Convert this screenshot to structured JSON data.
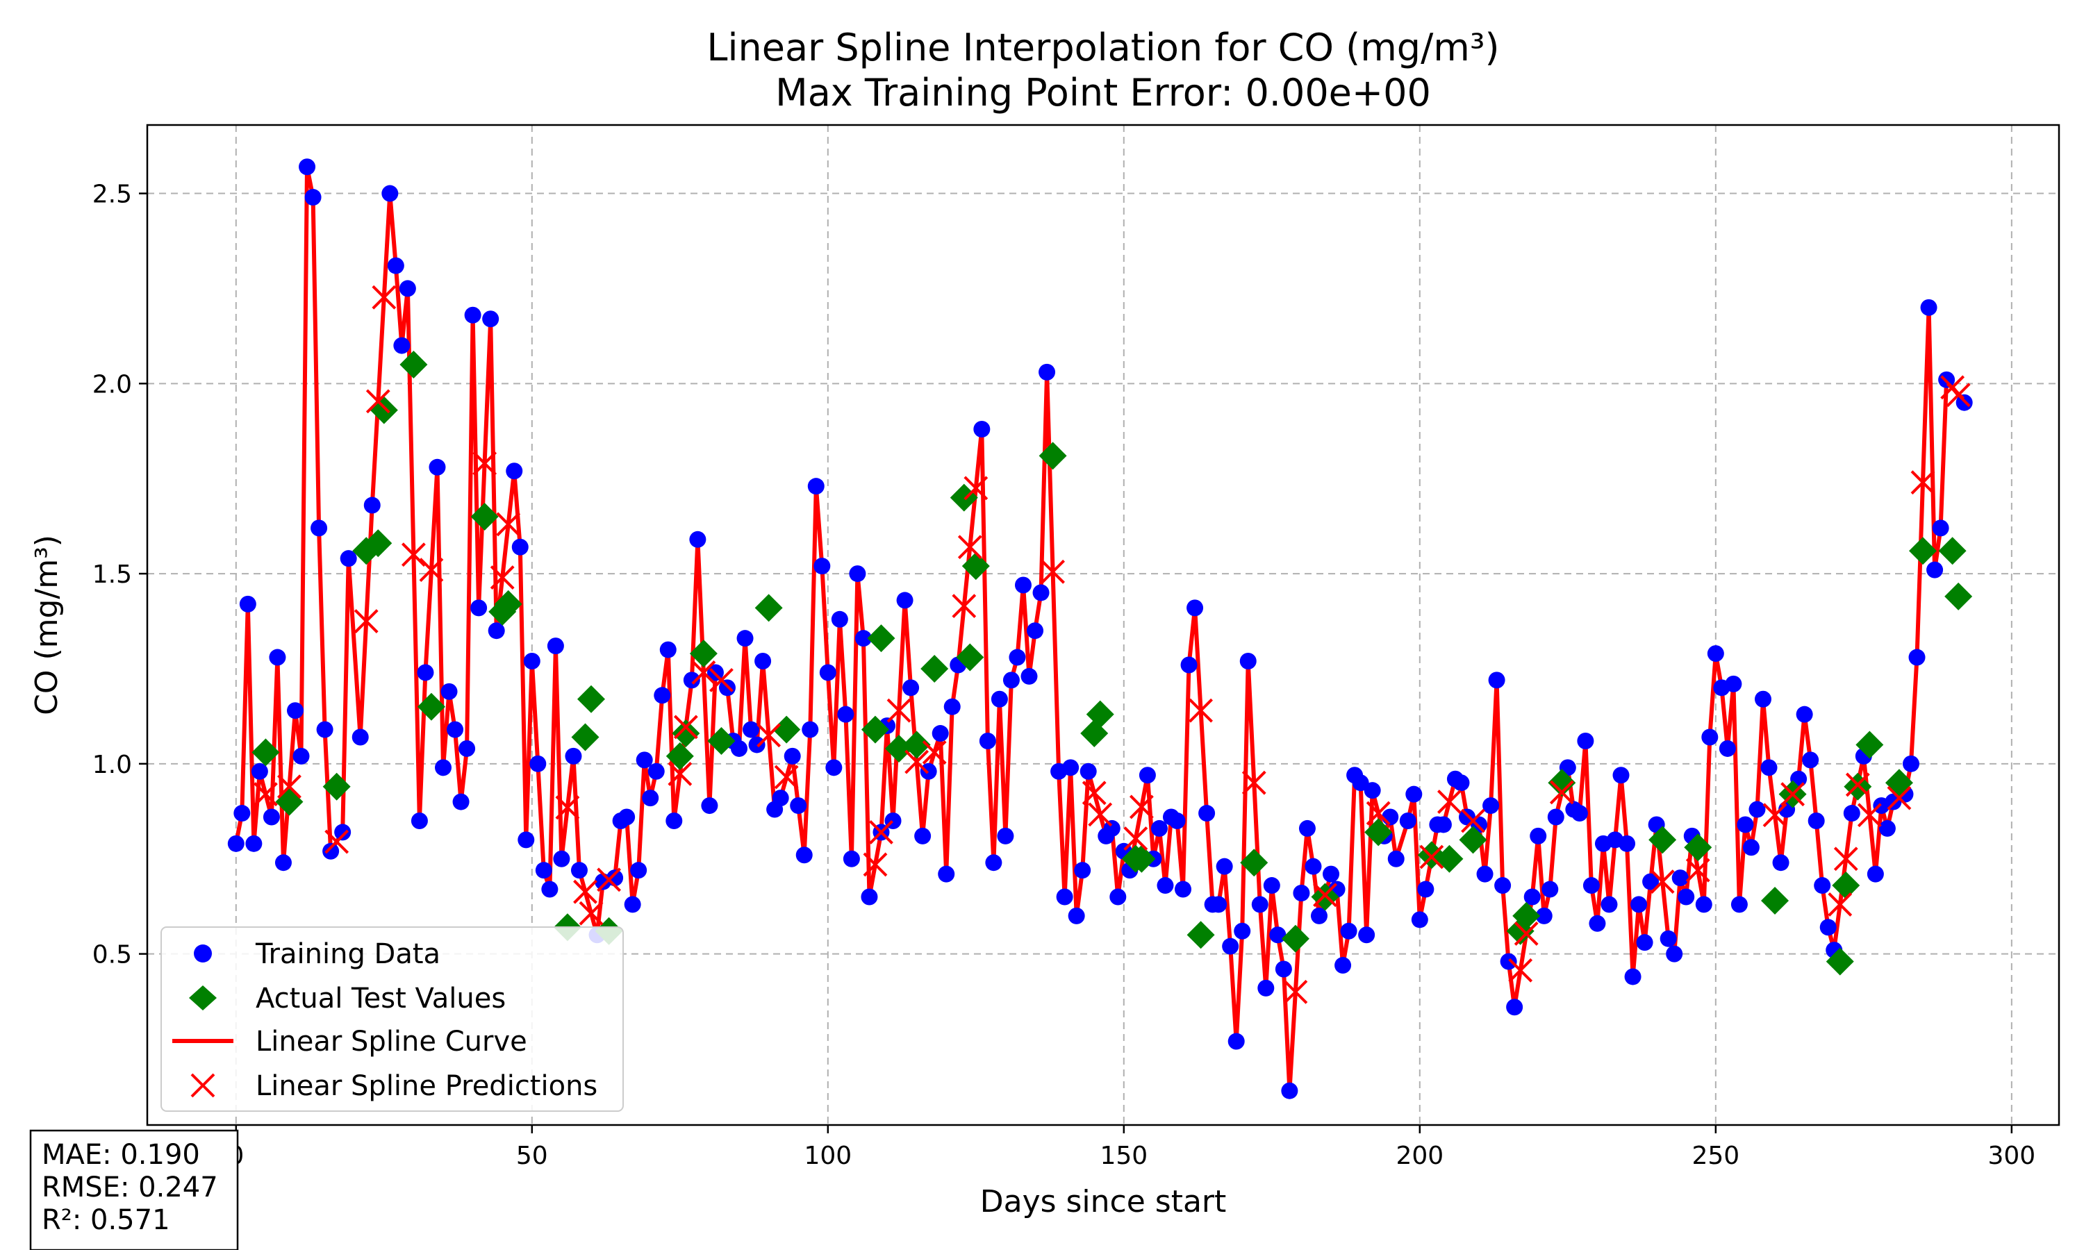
{
  "chart_data": {
    "type": "line",
    "title": "Linear Spline Interpolation for CO (mg/m³)",
    "subtitle": "Max Training Point Error: 0.00e+00",
    "xlabel": "Days since start",
    "ylabel": "CO (mg/m³)",
    "xlim": [
      -15,
      308
    ],
    "ylim": [
      0.05,
      2.68
    ],
    "x_ticks": [
      0,
      50,
      100,
      150,
      200,
      250,
      300
    ],
    "x_tick_labels": [
      "0",
      "50",
      "100",
      "150",
      "200",
      "250",
      "300"
    ],
    "y_ticks": [
      0.5,
      1.0,
      1.5,
      2.0,
      2.5
    ],
    "y_tick_labels": [
      "0.5",
      "1.0",
      "1.5",
      "2.0",
      "2.5"
    ],
    "grid": true,
    "legend_position": "lower-left",
    "series": [
      {
        "name": "Training Data",
        "kind": "scatter",
        "marker": "circle",
        "color": "#0000ff",
        "points": [
          [
            0,
            0.79
          ],
          [
            1,
            0.87
          ],
          [
            2,
            1.42
          ],
          [
            3,
            0.79
          ],
          [
            4,
            0.98
          ],
          [
            6,
            0.86
          ],
          [
            7,
            1.28
          ],
          [
            8,
            0.74
          ],
          [
            10,
            1.14
          ],
          [
            11,
            1.02
          ],
          [
            12,
            2.57
          ],
          [
            13,
            2.49
          ],
          [
            14,
            1.62
          ],
          [
            15,
            1.09
          ],
          [
            16,
            0.77
          ],
          [
            18,
            0.82
          ],
          [
            19,
            1.54
          ],
          [
            21,
            1.07
          ],
          [
            23,
            1.68
          ],
          [
            26,
            2.5
          ],
          [
            27,
            2.31
          ],
          [
            28,
            2.1
          ],
          [
            29,
            2.25
          ],
          [
            31,
            0.85
          ],
          [
            32,
            1.24
          ],
          [
            34,
            1.78
          ],
          [
            35,
            0.99
          ],
          [
            36,
            1.19
          ],
          [
            37,
            1.09
          ],
          [
            38,
            0.9
          ],
          [
            39,
            1.04
          ],
          [
            40,
            2.18
          ],
          [
            41,
            1.41
          ],
          [
            43,
            2.17
          ],
          [
            44,
            1.35
          ],
          [
            47,
            1.77
          ],
          [
            48,
            1.57
          ],
          [
            49,
            0.8
          ],
          [
            50,
            1.27
          ],
          [
            51,
            1.0
          ],
          [
            52,
            0.72
          ],
          [
            53,
            0.67
          ],
          [
            54,
            1.31
          ],
          [
            55,
            0.75
          ],
          [
            57,
            1.02
          ],
          [
            58,
            0.72
          ],
          [
            61,
            0.55
          ],
          [
            62,
            0.69
          ],
          [
            64,
            0.7
          ],
          [
            65,
            0.85
          ],
          [
            66,
            0.86
          ],
          [
            67,
            0.63
          ],
          [
            68,
            0.72
          ],
          [
            69,
            1.01
          ],
          [
            70,
            0.91
          ],
          [
            71,
            0.98
          ],
          [
            72,
            1.18
          ],
          [
            73,
            1.3
          ],
          [
            74,
            0.85
          ],
          [
            77,
            1.22
          ],
          [
            78,
            1.59
          ],
          [
            80,
            0.89
          ],
          [
            81,
            1.24
          ],
          [
            83,
            1.2
          ],
          [
            84,
            1.06
          ],
          [
            85,
            1.04
          ],
          [
            86,
            1.33
          ],
          [
            87,
            1.09
          ],
          [
            88,
            1.05
          ],
          [
            89,
            1.27
          ],
          [
            91,
            0.88
          ],
          [
            92,
            0.91
          ],
          [
            94,
            1.02
          ],
          [
            95,
            0.89
          ],
          [
            96,
            0.76
          ],
          [
            97,
            1.09
          ],
          [
            98,
            1.73
          ],
          [
            99,
            1.52
          ],
          [
            100,
            1.24
          ],
          [
            101,
            0.99
          ],
          [
            102,
            1.38
          ],
          [
            103,
            1.13
          ],
          [
            104,
            0.75
          ],
          [
            105,
            1.5
          ],
          [
            106,
            1.33
          ],
          [
            107,
            0.65
          ],
          [
            109,
            0.82
          ],
          [
            110,
            1.1
          ],
          [
            111,
            0.85
          ],
          [
            113,
            1.43
          ],
          [
            114,
            1.2
          ],
          [
            116,
            0.81
          ],
          [
            117,
            0.98
          ],
          [
            119,
            1.08
          ],
          [
            120,
            0.71
          ],
          [
            121,
            1.15
          ],
          [
            122,
            1.26
          ],
          [
            126,
            1.88
          ],
          [
            127,
            1.06
          ],
          [
            128,
            0.74
          ],
          [
            129,
            1.17
          ],
          [
            130,
            0.81
          ],
          [
            131,
            1.22
          ],
          [
            132,
            1.28
          ],
          [
            133,
            1.47
          ],
          [
            134,
            1.23
          ],
          [
            135,
            1.35
          ],
          [
            136,
            1.45
          ],
          [
            137,
            2.03
          ],
          [
            139,
            0.98
          ],
          [
            140,
            0.65
          ],
          [
            141,
            0.99
          ],
          [
            142,
            0.6
          ],
          [
            143,
            0.72
          ],
          [
            144,
            0.98
          ],
          [
            147,
            0.81
          ],
          [
            148,
            0.83
          ],
          [
            149,
            0.65
          ],
          [
            150,
            0.77
          ],
          [
            151,
            0.72
          ],
          [
            154,
            0.97
          ],
          [
            155,
            0.75
          ],
          [
            156,
            0.83
          ],
          [
            157,
            0.68
          ],
          [
            158,
            0.86
          ],
          [
            159,
            0.85
          ],
          [
            160,
            0.67
          ],
          [
            161,
            1.26
          ],
          [
            162,
            1.41
          ],
          [
            164,
            0.87
          ],
          [
            165,
            0.63
          ],
          [
            166,
            0.63
          ],
          [
            167,
            0.73
          ],
          [
            168,
            0.52
          ],
          [
            169,
            0.27
          ],
          [
            170,
            0.56
          ],
          [
            171,
            1.27
          ],
          [
            173,
            0.63
          ],
          [
            174,
            0.41
          ],
          [
            175,
            0.68
          ],
          [
            176,
            0.55
          ],
          [
            177,
            0.46
          ],
          [
            178,
            0.14
          ],
          [
            180,
            0.66
          ],
          [
            181,
            0.83
          ],
          [
            182,
            0.73
          ],
          [
            183,
            0.6
          ],
          [
            185,
            0.71
          ],
          [
            186,
            0.67
          ],
          [
            187,
            0.47
          ],
          [
            188,
            0.56
          ],
          [
            189,
            0.97
          ],
          [
            190,
            0.95
          ],
          [
            191,
            0.55
          ],
          [
            192,
            0.93
          ],
          [
            194,
            0.81
          ],
          [
            195,
            0.86
          ],
          [
            196,
            0.75
          ],
          [
            198,
            0.85
          ],
          [
            199,
            0.92
          ],
          [
            200,
            0.59
          ],
          [
            201,
            0.67
          ],
          [
            203,
            0.84
          ],
          [
            204,
            0.84
          ],
          [
            206,
            0.96
          ],
          [
            207,
            0.95
          ],
          [
            208,
            0.86
          ],
          [
            210,
            0.84
          ],
          [
            211,
            0.71
          ],
          [
            212,
            0.89
          ],
          [
            213,
            1.22
          ],
          [
            214,
            0.68
          ],
          [
            215,
            0.48
          ],
          [
            216,
            0.36
          ],
          [
            219,
            0.65
          ],
          [
            220,
            0.81
          ],
          [
            221,
            0.6
          ],
          [
            222,
            0.67
          ],
          [
            223,
            0.86
          ],
          [
            225,
            0.99
          ],
          [
            226,
            0.88
          ],
          [
            227,
            0.87
          ],
          [
            228,
            1.06
          ],
          [
            229,
            0.68
          ],
          [
            230,
            0.58
          ],
          [
            231,
            0.79
          ],
          [
            232,
            0.63
          ],
          [
            233,
            0.8
          ],
          [
            234,
            0.97
          ],
          [
            235,
            0.79
          ],
          [
            236,
            0.44
          ],
          [
            237,
            0.63
          ],
          [
            238,
            0.53
          ],
          [
            239,
            0.69
          ],
          [
            240,
            0.84
          ],
          [
            242,
            0.54
          ],
          [
            243,
            0.5
          ],
          [
            244,
            0.7
          ],
          [
            245,
            0.65
          ],
          [
            246,
            0.81
          ],
          [
            248,
            0.63
          ],
          [
            249,
            1.07
          ],
          [
            250,
            1.29
          ],
          [
            251,
            1.2
          ],
          [
            252,
            1.04
          ],
          [
            253,
            1.21
          ],
          [
            254,
            0.63
          ],
          [
            255,
            0.84
          ],
          [
            256,
            0.78
          ],
          [
            257,
            0.88
          ],
          [
            258,
            1.17
          ],
          [
            259,
            0.99
          ],
          [
            261,
            0.74
          ],
          [
            262,
            0.88
          ],
          [
            264,
            0.96
          ],
          [
            265,
            1.13
          ],
          [
            266,
            1.01
          ],
          [
            267,
            0.85
          ],
          [
            268,
            0.68
          ],
          [
            269,
            0.57
          ],
          [
            270,
            0.51
          ],
          [
            273,
            0.87
          ],
          [
            275,
            1.02
          ],
          [
            277,
            0.71
          ],
          [
            278,
            0.89
          ],
          [
            279,
            0.83
          ],
          [
            280,
            0.9
          ],
          [
            282,
            0.92
          ],
          [
            283,
            1.0
          ],
          [
            284,
            1.28
          ],
          [
            286,
            2.2
          ],
          [
            287,
            1.51
          ],
          [
            288,
            1.62
          ],
          [
            289,
            2.01
          ],
          [
            292,
            1.95
          ]
        ]
      },
      {
        "name": "Actual Test Values",
        "kind": "scatter",
        "marker": "diamond",
        "color": "#008000",
        "points": [
          [
            5,
            1.03
          ],
          [
            9,
            0.9
          ],
          [
            17,
            0.94
          ],
          [
            22,
            1.56
          ],
          [
            24,
            1.58
          ],
          [
            25,
            1.93
          ],
          [
            30,
            2.05
          ],
          [
            33,
            1.15
          ],
          [
            42,
            1.65
          ],
          [
            45,
            1.4
          ],
          [
            46,
            1.42
          ],
          [
            56,
            0.57
          ],
          [
            59,
            1.07
          ],
          [
            60,
            1.17
          ],
          [
            63,
            0.56
          ],
          [
            75,
            1.02
          ],
          [
            76,
            1.08
          ],
          [
            79,
            1.29
          ],
          [
            82,
            1.06
          ],
          [
            90,
            1.41
          ],
          [
            93,
            1.09
          ],
          [
            108,
            1.09
          ],
          [
            109,
            1.33
          ],
          [
            112,
            1.04
          ],
          [
            115,
            1.05
          ],
          [
            118,
            1.25
          ],
          [
            123,
            1.7
          ],
          [
            124,
            1.28
          ],
          [
            125,
            1.52
          ],
          [
            138,
            1.81
          ],
          [
            145,
            1.08
          ],
          [
            146,
            1.13
          ],
          [
            152,
            0.75
          ],
          [
            153,
            0.75
          ],
          [
            163,
            0.55
          ],
          [
            172,
            0.74
          ],
          [
            179,
            0.54
          ],
          [
            184,
            0.65
          ],
          [
            193,
            0.82
          ],
          [
            202,
            0.76
          ],
          [
            205,
            0.75
          ],
          [
            209,
            0.8
          ],
          [
            217,
            0.56
          ],
          [
            218,
            0.6
          ],
          [
            224,
            0.95
          ],
          [
            241,
            0.8
          ],
          [
            247,
            0.78
          ],
          [
            260,
            0.64
          ],
          [
            263,
            0.92
          ],
          [
            271,
            0.48
          ],
          [
            272,
            0.68
          ],
          [
            274,
            0.94
          ],
          [
            276,
            1.05
          ],
          [
            281,
            0.95
          ],
          [
            285,
            1.56
          ],
          [
            290,
            1.56
          ],
          [
            291,
            1.44
          ]
        ]
      },
      {
        "name": "Linear Spline Curve",
        "kind": "line",
        "color": "#ff0000"
      },
      {
        "name": "Linear Spline Predictions",
        "kind": "scatter",
        "marker": "x",
        "color": "#ff0000"
      }
    ]
  },
  "metrics": {
    "mae": "MAE: 0.190",
    "rmse": "RMSE: 0.247",
    "r2": "R²: 0.571"
  },
  "colors": {
    "training": "#0000ff",
    "test": "#008000",
    "curve": "#ff0000",
    "grid": "#b0b0b0"
  }
}
